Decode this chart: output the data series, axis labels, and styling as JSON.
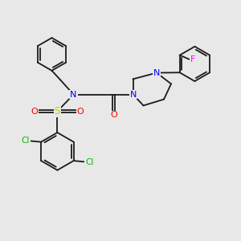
{
  "bg_color": "#e8e8e8",
  "bond_color": "#1a1a1a",
  "N_color": "#0000ff",
  "O_color": "#ff0000",
  "S_color": "#cccc00",
  "Cl_color": "#00bb00",
  "F_color": "#ff00ff",
  "lw": 1.3,
  "dbo": 0.055,
  "figsize": [
    3.0,
    3.0
  ],
  "dpi": 100,
  "xlim": [
    0,
    10
  ],
  "ylim": [
    0,
    10
  ]
}
